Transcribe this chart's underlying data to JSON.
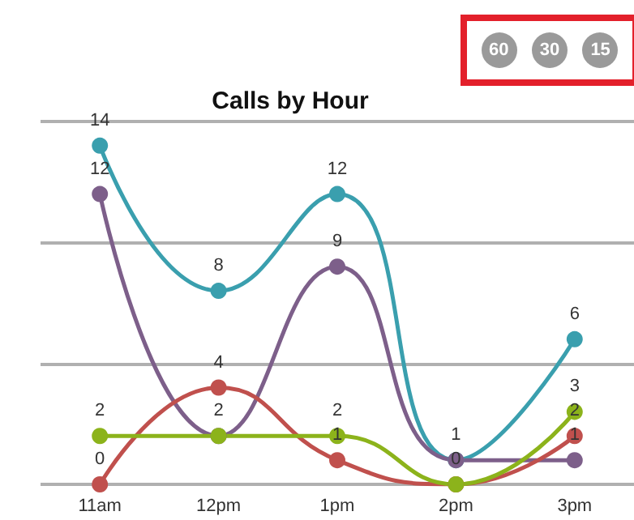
{
  "chart_data": {
    "type": "line",
    "title": "Calls by Hour",
    "categories": [
      "11am",
      "12pm",
      "1pm",
      "2pm",
      "3pm"
    ],
    "series": [
      {
        "color": "#3a9fae",
        "values": [
          14,
          8,
          12,
          1,
          6
        ],
        "value_labels": [
          "14",
          "8",
          "12",
          null,
          "6"
        ]
      },
      {
        "color": "#7d5f8a",
        "values": [
          12,
          2,
          9,
          1,
          1
        ],
        "value_labels": [
          "12",
          null,
          "9",
          "1",
          "1"
        ]
      },
      {
        "color": "#c0504d",
        "values": [
          0,
          4,
          1,
          0,
          2
        ],
        "value_labels": [
          "0",
          "4",
          "1",
          null,
          "2"
        ]
      },
      {
        "color": "#8cb31b",
        "values": [
          2,
          2,
          2,
          0,
          3
        ],
        "value_labels": [
          "2",
          "2",
          "2",
          "0",
          "3"
        ]
      }
    ],
    "ylim": [
      0,
      15
    ],
    "yticks": [
      {
        "value": 0,
        "label": null
      },
      {
        "value": 5,
        "label": null
      },
      {
        "value": 10,
        "label": null
      },
      {
        "value": 15,
        "label": null
      }
    ],
    "tick_labels": "x",
    "grid": "y",
    "marker": "circle",
    "line_style": "solid",
    "annotations": [
      "60",
      "30",
      "15"
    ]
  }
}
